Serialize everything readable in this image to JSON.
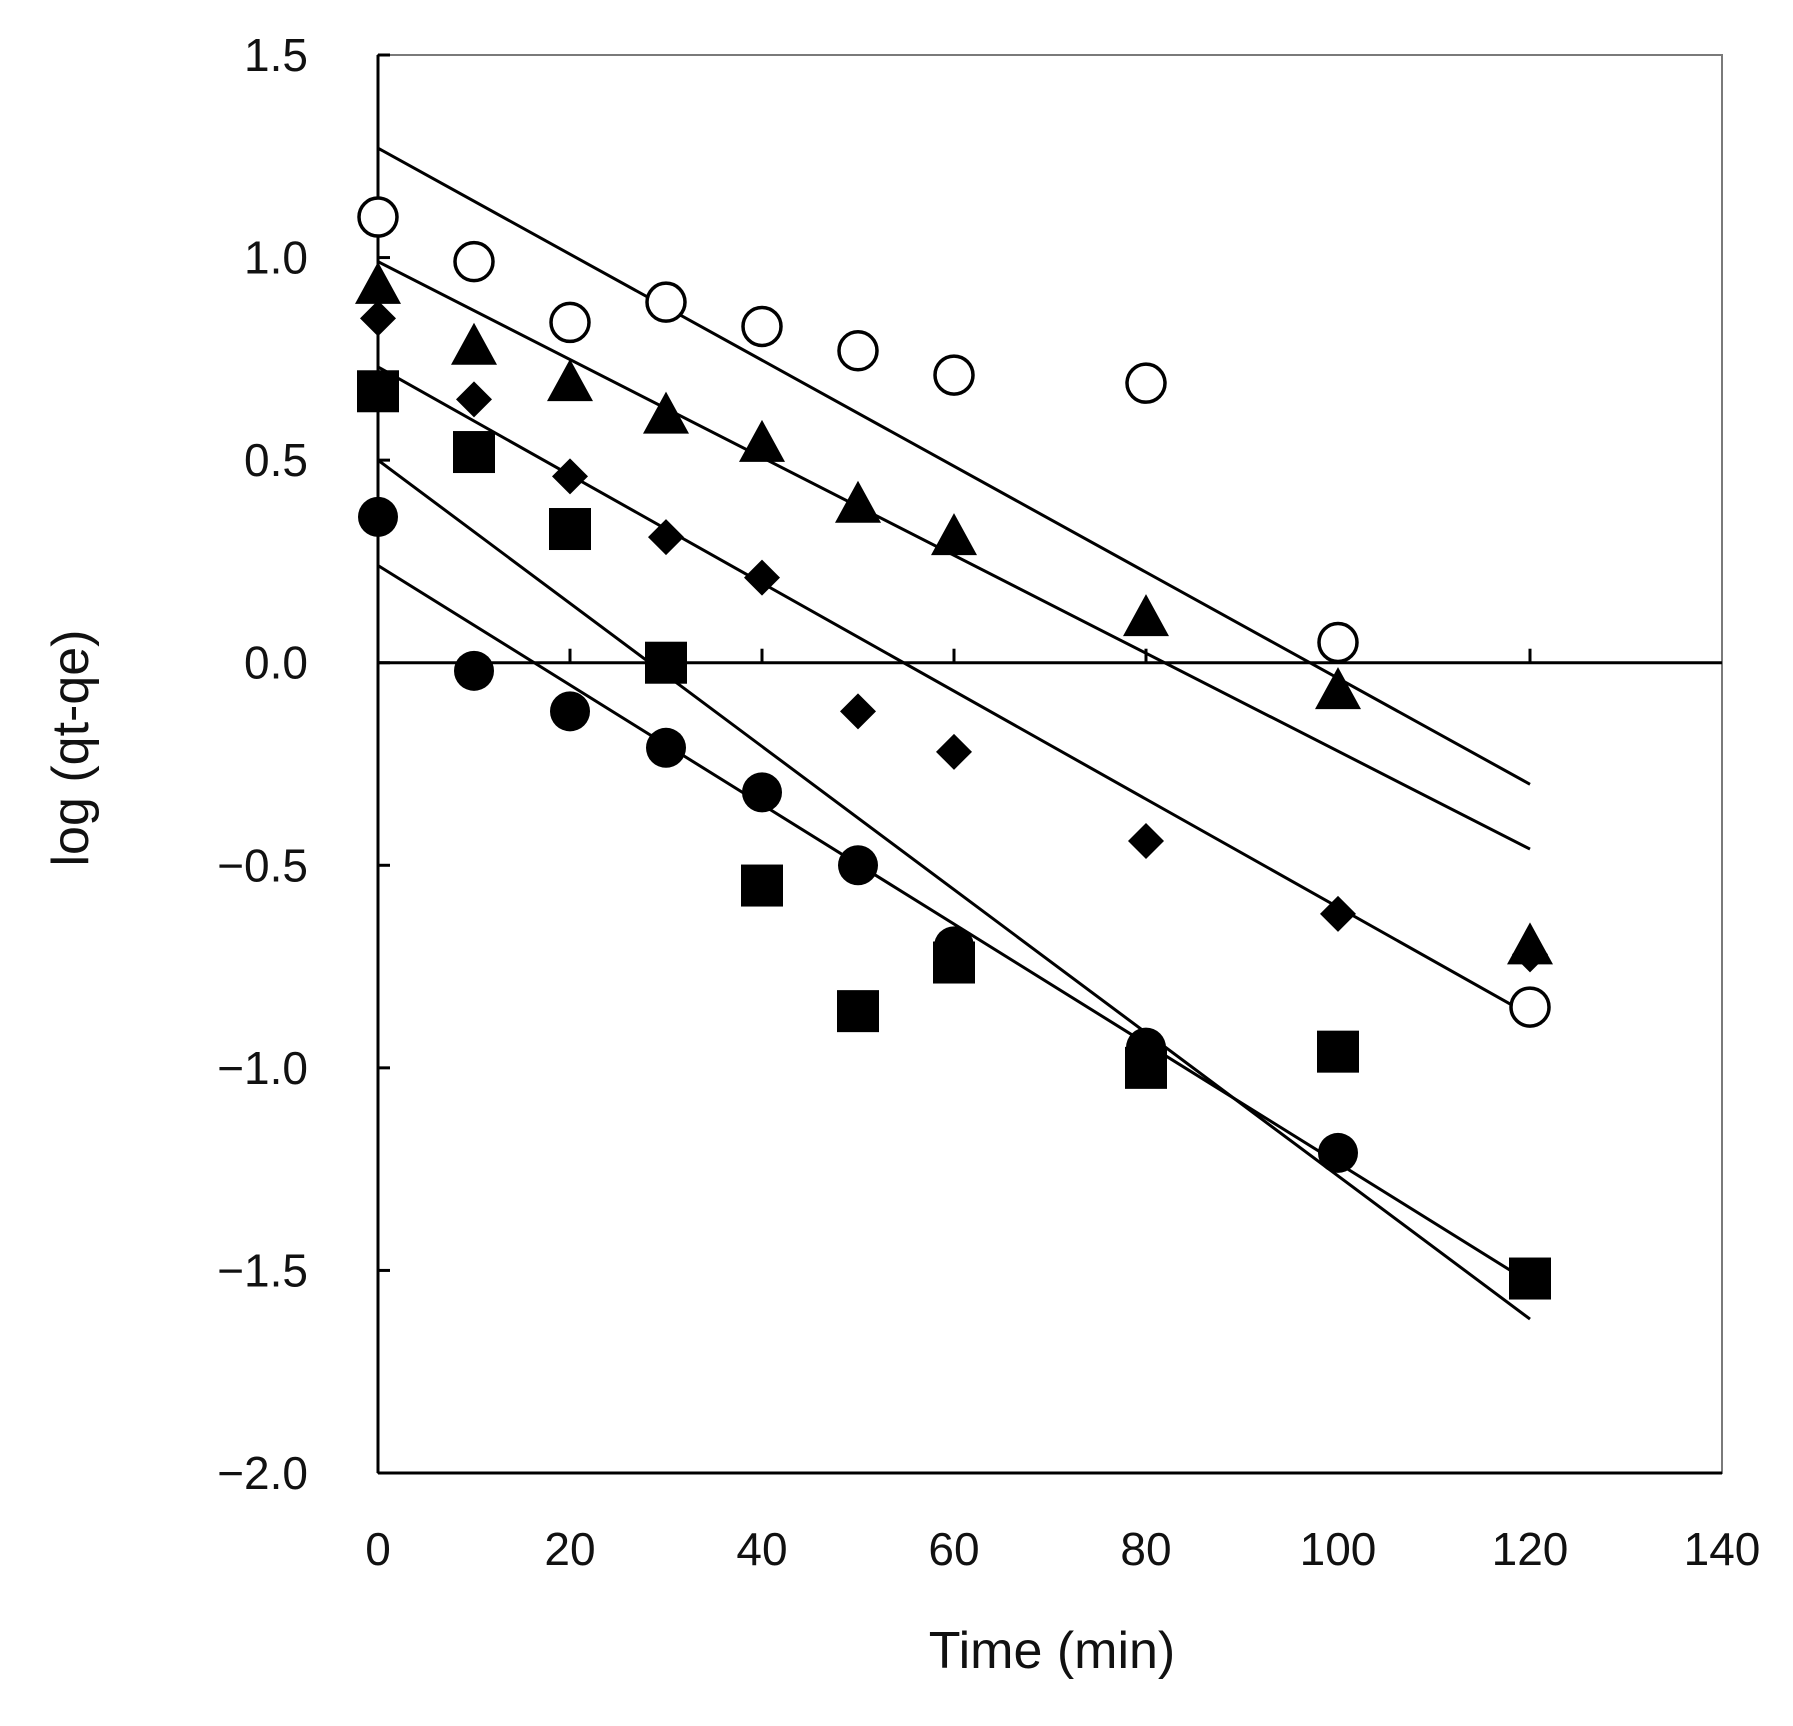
{
  "chart_data": {
    "type": "scatter",
    "title": "",
    "xlabel": "Time (min)",
    "ylabel": "log (qt-qe)",
    "xlim": [
      0,
      140
    ],
    "ylim": [
      -2.0,
      1.5
    ],
    "x_ticks": [
      0,
      20,
      40,
      60,
      80,
      100,
      120,
      140
    ],
    "x_tick_labels": [
      "0",
      "20",
      "40",
      "60",
      "80",
      "100",
      "120",
      "140"
    ],
    "y_ticks": [
      1.5,
      1.0,
      0.5,
      0.0,
      -0.5,
      -1.0,
      -1.5,
      -2.0
    ],
    "y_tick_labels": [
      "1.5",
      "1.0",
      "0.5",
      "0.0",
      "−0.5",
      "−1.0",
      "−1.5",
      "−2.0"
    ],
    "zero_line": true,
    "grid": false,
    "legend": "none",
    "colors": {
      "ink": "#000000",
      "background": "#ffffff"
    },
    "series": [
      {
        "name": "open-circle",
        "marker": "circle-open",
        "x": [
          0,
          10,
          20,
          30,
          40,
          50,
          60,
          80,
          100,
          120
        ],
        "y": [
          1.1,
          0.99,
          0.84,
          0.89,
          0.83,
          0.77,
          0.71,
          0.69,
          0.05,
          -0.85
        ],
        "fit": {
          "x0": 0,
          "y0": 1.27,
          "x1": 120,
          "y1": -0.3
        }
      },
      {
        "name": "filled-triangle",
        "marker": "triangle",
        "x": [
          0,
          10,
          20,
          30,
          40,
          50,
          60,
          80,
          100,
          120
        ],
        "y": [
          0.93,
          0.78,
          0.69,
          0.61,
          0.54,
          0.39,
          0.31,
          0.11,
          -0.07,
          -0.7
        ],
        "fit": {
          "x0": 0,
          "y0": 0.99,
          "x1": 120,
          "y1": -0.46
        }
      },
      {
        "name": "filled-diamond",
        "marker": "diamond",
        "x": [
          0,
          10,
          20,
          30,
          40,
          50,
          60,
          80,
          100,
          120
        ],
        "y": [
          0.85,
          0.65,
          0.46,
          0.31,
          0.21,
          -0.12,
          -0.22,
          -0.44,
          -0.62,
          -0.72
        ],
        "fit": {
          "x0": 0,
          "y0": 0.73,
          "x1": 120,
          "y1": -0.87
        }
      },
      {
        "name": "filled-square",
        "marker": "square",
        "x": [
          0,
          10,
          20,
          30,
          40,
          50,
          60,
          80,
          100,
          120
        ],
        "y": [
          0.67,
          0.52,
          0.33,
          0.0,
          -0.55,
          -0.86,
          -0.74,
          -1.0,
          -0.96,
          -1.52
        ],
        "fit": {
          "x0": 0,
          "y0": 0.5,
          "x1": 120,
          "y1": -1.62
        }
      },
      {
        "name": "filled-circle",
        "marker": "circle",
        "x": [
          0,
          10,
          20,
          30,
          40,
          50,
          60,
          80,
          100,
          120
        ],
        "y": [
          0.36,
          -0.02,
          -0.12,
          -0.21,
          -0.32,
          -0.5,
          -0.7,
          -0.95,
          -1.21,
          -1.52
        ],
        "fit": {
          "x0": 0,
          "y0": 0.24,
          "x1": 120,
          "y1": -1.53
        }
      }
    ]
  }
}
